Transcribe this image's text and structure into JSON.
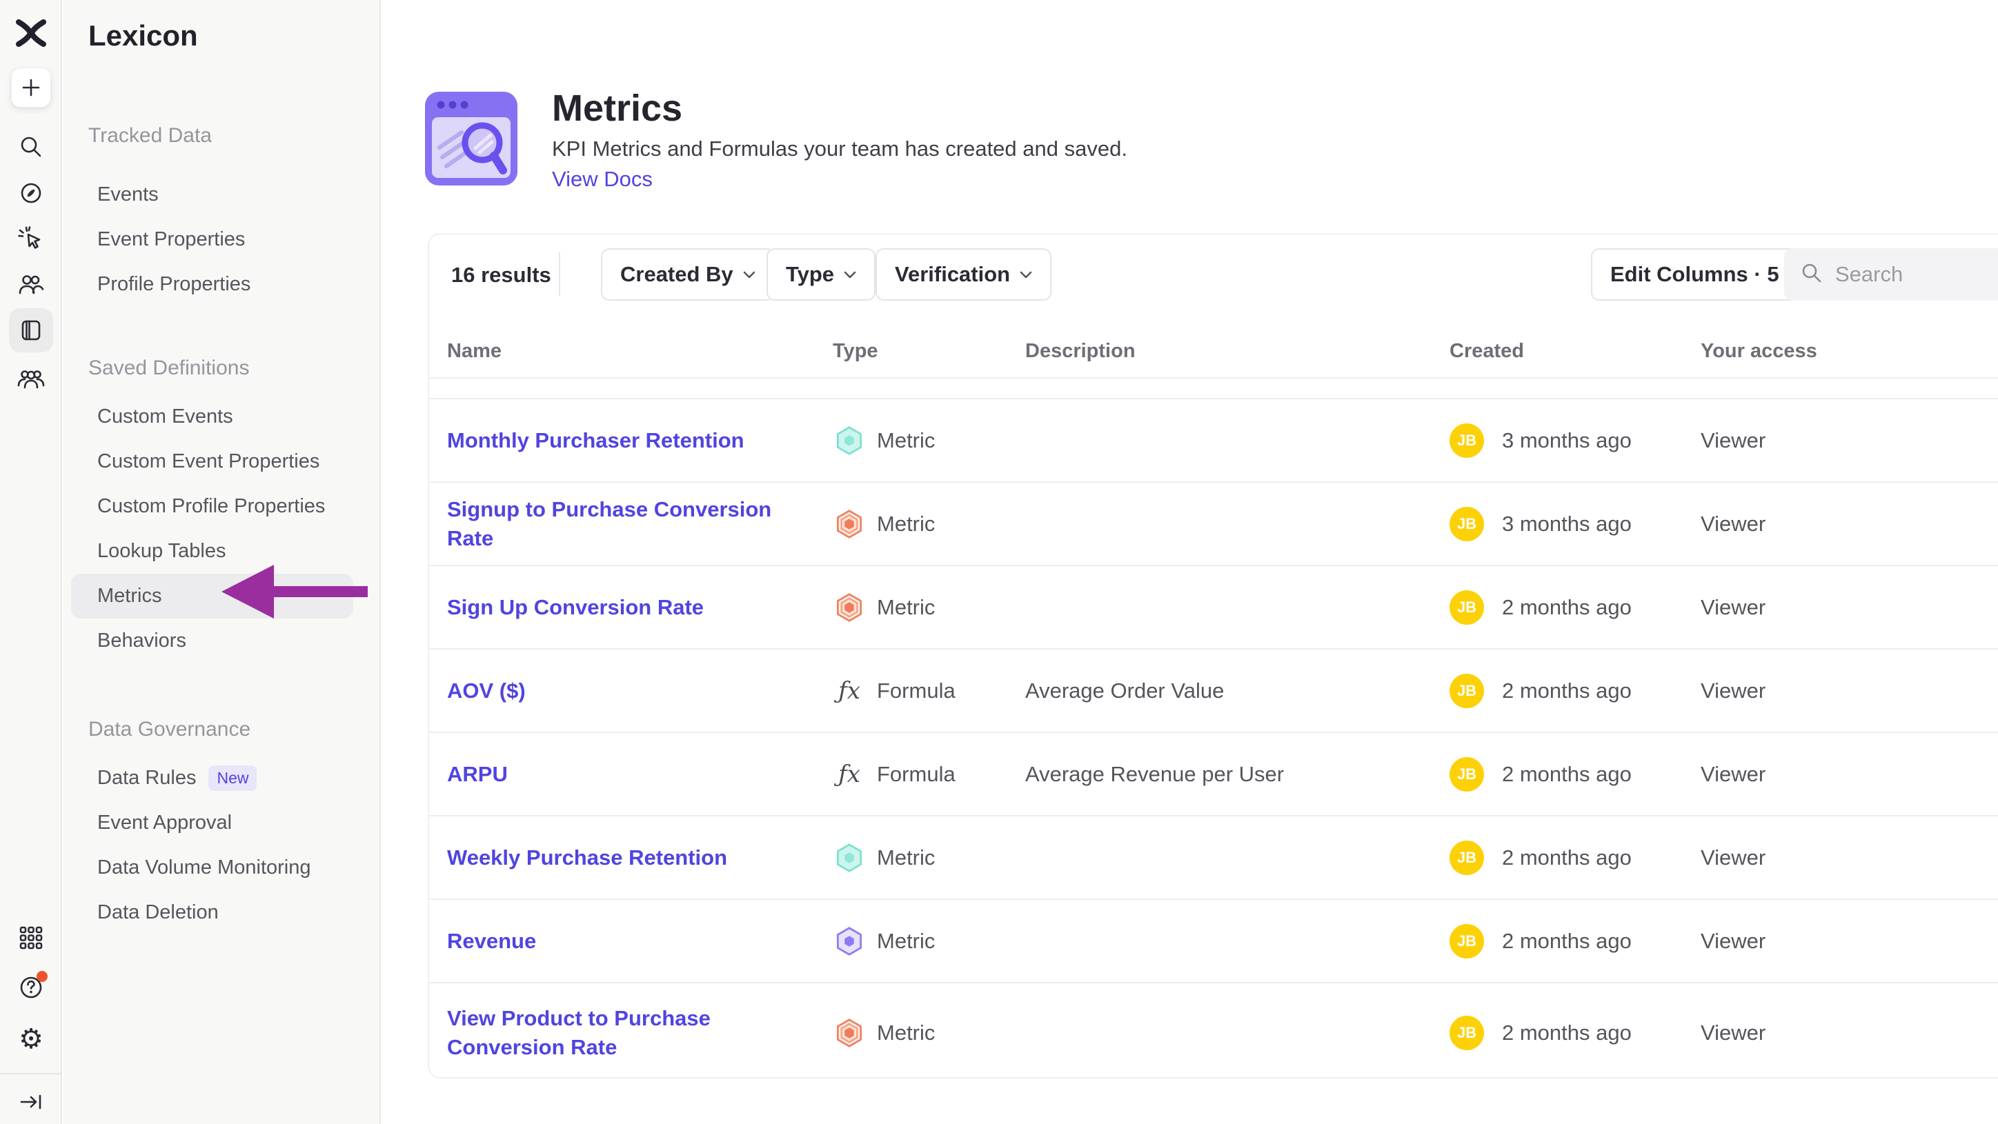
{
  "nav": {
    "title": "Lexicon",
    "sections": [
      {
        "label": "Tracked Data",
        "items": [
          {
            "label": "Events"
          },
          {
            "label": "Event Properties"
          },
          {
            "label": "Profile Properties"
          }
        ]
      },
      {
        "label": "Saved Definitions",
        "items": [
          {
            "label": "Custom Events"
          },
          {
            "label": "Custom Event Properties"
          },
          {
            "label": "Custom Profile Properties"
          },
          {
            "label": "Lookup Tables"
          },
          {
            "label": "Metrics",
            "active": true
          },
          {
            "label": "Behaviors"
          }
        ]
      },
      {
        "label": "Data Governance",
        "items": [
          {
            "label": "Data Rules",
            "badge": "New"
          },
          {
            "label": "Event Approval"
          },
          {
            "label": "Data Volume Monitoring"
          },
          {
            "label": "Data Deletion"
          }
        ]
      }
    ]
  },
  "rail_icons": [
    "mixpanel-logo",
    "plus",
    "search",
    "compass",
    "cursor-click",
    "users",
    "data-panel (active)",
    "user-group",
    "apps-grid",
    "help (red dot)",
    "settings-gear",
    "sign-out"
  ],
  "header": {
    "title": "Metrics",
    "description": "KPI Metrics and Formulas your team has created and saved.",
    "docs_link": "View Docs"
  },
  "toolbar": {
    "results": "16 results",
    "filters": {
      "created_by": "Created By",
      "type": "Type",
      "verification": "Verification"
    },
    "edit_columns": "Edit Columns · 5",
    "search_placeholder": "Search"
  },
  "table": {
    "columns": {
      "name": "Name",
      "type": "Type",
      "description": "Description",
      "created": "Created",
      "access": "Your access"
    },
    "rows": [
      {
        "name": "Monthly Purchaser Retention",
        "type": "Metric",
        "icon": "hexagon-teal",
        "description": "",
        "avatar": "JB",
        "created": "3 months ago",
        "access": "Viewer"
      },
      {
        "name": "Signup to Purchase Conversion Rate",
        "type": "Metric",
        "icon": "hexagon-orange",
        "description": "",
        "avatar": "JB",
        "created": "3 months ago",
        "access": "Viewer"
      },
      {
        "name": "Sign Up Conversion Rate",
        "type": "Metric",
        "icon": "hexagon-orange",
        "description": "",
        "avatar": "JB",
        "created": "2 months ago",
        "access": "Viewer"
      },
      {
        "name": "AOV ($)",
        "type": "Formula",
        "icon": "formula-fx",
        "description": "Average Order Value",
        "avatar": "JB",
        "created": "2 months ago",
        "access": "Viewer"
      },
      {
        "name": "ARPU",
        "type": "Formula",
        "icon": "formula-fx",
        "description": "Average Revenue per User",
        "avatar": "JB",
        "created": "2 months ago",
        "access": "Viewer"
      },
      {
        "name": "Weekly Purchase Retention",
        "type": "Metric",
        "icon": "hexagon-teal",
        "description": "",
        "avatar": "JB",
        "created": "2 months ago",
        "access": "Viewer"
      },
      {
        "name": "Revenue",
        "type": "Metric",
        "icon": "hexagon-purple",
        "description": "",
        "avatar": "JB",
        "created": "2 months ago",
        "access": "Viewer"
      },
      {
        "name": "View Product to Purchase Conversion Rate",
        "type": "Metric",
        "icon": "hexagon-orange",
        "description": "",
        "avatar": "JB",
        "created": "2 months ago",
        "access": "Viewer"
      }
    ]
  },
  "annotation": {
    "shape": "arrow-left",
    "target": "Metrics nav item",
    "color": "#9a2e9f"
  },
  "colors": {
    "accent_indigo": "#5044e0",
    "arrow_purple": "#9a2e9f",
    "avatar_yellow": "#fdd108",
    "hex_teal": "#7de1d0",
    "hex_orange": "#ef8260",
    "hex_purple": "#8d7cf4",
    "sidebar_bg": "#f8f8f7",
    "help_dot": "#f0512d"
  }
}
